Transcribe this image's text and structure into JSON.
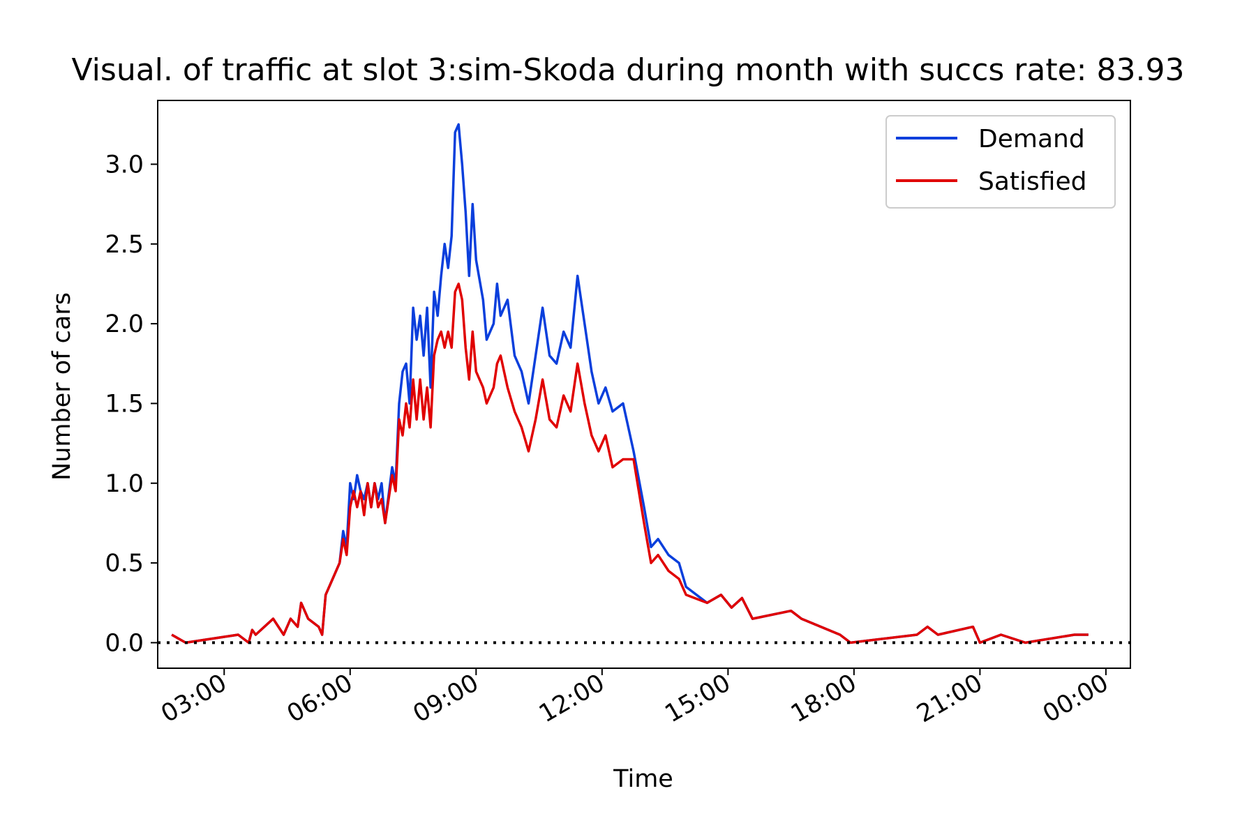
{
  "chart_data": {
    "type": "line",
    "title": "Visual. of traffic at slot 3:sim-Skoda during month with succs rate: 83.93",
    "xlabel": "Time",
    "ylabel": "Number of cars",
    "xlim": [
      "01:25",
      "00:35"
    ],
    "ylim": [
      -0.16,
      3.4
    ],
    "xticks": [
      "03:00",
      "06:00",
      "09:00",
      "12:00",
      "15:00",
      "18:00",
      "21:00",
      "00:00"
    ],
    "yticks": [
      "0.0",
      "0.5",
      "1.0",
      "1.5",
      "2.0",
      "2.5",
      "3.0"
    ],
    "grid": false,
    "legend_position": "top-right",
    "reference_line": {
      "y": 0.0,
      "style": "dotted",
      "color": "#000000"
    },
    "series": [
      {
        "name": "Demand",
        "color": "#0a3fdc",
        "points": [
          [
            "01:45",
            0.05
          ],
          [
            "02:05",
            0.0
          ],
          [
            "03:20",
            0.05
          ],
          [
            "03:35",
            0.0
          ],
          [
            "03:40",
            0.08
          ],
          [
            "03:45",
            0.05
          ],
          [
            "04:10",
            0.15
          ],
          [
            "04:25",
            0.05
          ],
          [
            "04:35",
            0.15
          ],
          [
            "04:45",
            0.1
          ],
          [
            "04:50",
            0.25
          ],
          [
            "05:00",
            0.15
          ],
          [
            "05:15",
            0.1
          ],
          [
            "05:20",
            0.05
          ],
          [
            "05:25",
            0.3
          ],
          [
            "05:35",
            0.4
          ],
          [
            "05:45",
            0.5
          ],
          [
            "05:50",
            0.7
          ],
          [
            "05:55",
            0.6
          ],
          [
            "06:00",
            1.0
          ],
          [
            "06:05",
            0.9
          ],
          [
            "06:10",
            1.05
          ],
          [
            "06:15",
            0.95
          ],
          [
            "06:20",
            0.9
          ],
          [
            "06:25",
            1.0
          ],
          [
            "06:30",
            0.85
          ],
          [
            "06:35",
            1.0
          ],
          [
            "06:40",
            0.9
          ],
          [
            "06:45",
            1.0
          ],
          [
            "06:50",
            0.75
          ],
          [
            "07:00",
            1.1
          ],
          [
            "07:05",
            1.0
          ],
          [
            "07:10",
            1.5
          ],
          [
            "07:15",
            1.7
          ],
          [
            "07:20",
            1.75
          ],
          [
            "07:25",
            1.5
          ],
          [
            "07:30",
            2.1
          ],
          [
            "07:35",
            1.9
          ],
          [
            "07:40",
            2.05
          ],
          [
            "07:45",
            1.8
          ],
          [
            "07:50",
            2.1
          ],
          [
            "07:55",
            1.6
          ],
          [
            "08:00",
            2.2
          ],
          [
            "08:05",
            2.05
          ],
          [
            "08:10",
            2.3
          ],
          [
            "08:15",
            2.5
          ],
          [
            "08:20",
            2.35
          ],
          [
            "08:25",
            2.55
          ],
          [
            "08:30",
            3.2
          ],
          [
            "08:35",
            3.25
          ],
          [
            "08:40",
            3.0
          ],
          [
            "08:45",
            2.7
          ],
          [
            "08:50",
            2.3
          ],
          [
            "08:55",
            2.75
          ],
          [
            "09:00",
            2.4
          ],
          [
            "09:10",
            2.15
          ],
          [
            "09:15",
            1.9
          ],
          [
            "09:25",
            2.0
          ],
          [
            "09:30",
            2.25
          ],
          [
            "09:35",
            2.05
          ],
          [
            "09:45",
            2.15
          ],
          [
            "09:55",
            1.8
          ],
          [
            "10:05",
            1.7
          ],
          [
            "10:15",
            1.5
          ],
          [
            "10:25",
            1.8
          ],
          [
            "10:35",
            2.1
          ],
          [
            "10:45",
            1.8
          ],
          [
            "10:55",
            1.75
          ],
          [
            "11:05",
            1.95
          ],
          [
            "11:15",
            1.85
          ],
          [
            "11:25",
            2.3
          ],
          [
            "11:35",
            2.0
          ],
          [
            "11:45",
            1.7
          ],
          [
            "11:55",
            1.5
          ],
          [
            "12:05",
            1.6
          ],
          [
            "12:15",
            1.45
          ],
          [
            "12:30",
            1.5
          ],
          [
            "12:45",
            1.2
          ],
          [
            "13:00",
            0.85
          ],
          [
            "13:10",
            0.6
          ],
          [
            "13:20",
            0.65
          ],
          [
            "13:35",
            0.55
          ],
          [
            "13:50",
            0.5
          ],
          [
            "14:00",
            0.35
          ],
          [
            "14:30",
            0.25
          ],
          [
            "14:50",
            0.3
          ],
          [
            "15:05",
            0.22
          ],
          [
            "15:20",
            0.28
          ],
          [
            "15:35",
            0.15
          ],
          [
            "16:30",
            0.2
          ],
          [
            "16:45",
            0.15
          ],
          [
            "17:40",
            0.05
          ],
          [
            "17:55",
            0.0
          ],
          [
            "19:30",
            0.05
          ],
          [
            "19:45",
            0.1
          ],
          [
            "20:00",
            0.05
          ],
          [
            "20:50",
            0.1
          ],
          [
            "21:00",
            0.0
          ],
          [
            "21:30",
            0.05
          ],
          [
            "22:05",
            0.0
          ],
          [
            "23:15",
            0.05
          ],
          [
            "23:35",
            0.05
          ]
        ]
      },
      {
        "name": "Satisfied",
        "color": "#e00000",
        "points": [
          [
            "01:45",
            0.05
          ],
          [
            "02:05",
            0.0
          ],
          [
            "03:20",
            0.05
          ],
          [
            "03:35",
            0.0
          ],
          [
            "03:40",
            0.08
          ],
          [
            "03:45",
            0.05
          ],
          [
            "04:10",
            0.15
          ],
          [
            "04:25",
            0.05
          ],
          [
            "04:35",
            0.15
          ],
          [
            "04:45",
            0.1
          ],
          [
            "04:50",
            0.25
          ],
          [
            "05:00",
            0.15
          ],
          [
            "05:15",
            0.1
          ],
          [
            "05:20",
            0.05
          ],
          [
            "05:25",
            0.3
          ],
          [
            "05:35",
            0.4
          ],
          [
            "05:45",
            0.5
          ],
          [
            "05:50",
            0.65
          ],
          [
            "05:55",
            0.55
          ],
          [
            "06:00",
            0.85
          ],
          [
            "06:05",
            0.95
          ],
          [
            "06:10",
            0.85
          ],
          [
            "06:15",
            0.95
          ],
          [
            "06:20",
            0.8
          ],
          [
            "06:25",
            1.0
          ],
          [
            "06:30",
            0.85
          ],
          [
            "06:35",
            1.0
          ],
          [
            "06:40",
            0.85
          ],
          [
            "06:45",
            0.9
          ],
          [
            "06:50",
            0.75
          ],
          [
            "07:00",
            1.05
          ],
          [
            "07:05",
            0.95
          ],
          [
            "07:10",
            1.4
          ],
          [
            "07:15",
            1.3
          ],
          [
            "07:20",
            1.5
          ],
          [
            "07:25",
            1.35
          ],
          [
            "07:30",
            1.65
          ],
          [
            "07:35",
            1.4
          ],
          [
            "07:40",
            1.65
          ],
          [
            "07:45",
            1.4
          ],
          [
            "07:50",
            1.6
          ],
          [
            "07:55",
            1.35
          ],
          [
            "08:00",
            1.8
          ],
          [
            "08:05",
            1.9
          ],
          [
            "08:10",
            1.95
          ],
          [
            "08:15",
            1.85
          ],
          [
            "08:20",
            1.95
          ],
          [
            "08:25",
            1.85
          ],
          [
            "08:30",
            2.2
          ],
          [
            "08:35",
            2.25
          ],
          [
            "08:40",
            2.15
          ],
          [
            "08:45",
            1.85
          ],
          [
            "08:50",
            1.65
          ],
          [
            "08:55",
            1.95
          ],
          [
            "09:00",
            1.7
          ],
          [
            "09:10",
            1.6
          ],
          [
            "09:15",
            1.5
          ],
          [
            "09:25",
            1.6
          ],
          [
            "09:30",
            1.75
          ],
          [
            "09:35",
            1.8
          ],
          [
            "09:45",
            1.6
          ],
          [
            "09:55",
            1.45
          ],
          [
            "10:05",
            1.35
          ],
          [
            "10:15",
            1.2
          ],
          [
            "10:25",
            1.4
          ],
          [
            "10:35",
            1.65
          ],
          [
            "10:45",
            1.4
          ],
          [
            "10:55",
            1.35
          ],
          [
            "11:05",
            1.55
          ],
          [
            "11:15",
            1.45
          ],
          [
            "11:25",
            1.75
          ],
          [
            "11:35",
            1.5
          ],
          [
            "11:45",
            1.3
          ],
          [
            "11:55",
            1.2
          ],
          [
            "12:05",
            1.3
          ],
          [
            "12:15",
            1.1
          ],
          [
            "12:30",
            1.15
          ],
          [
            "12:45",
            1.15
          ],
          [
            "13:00",
            0.75
          ],
          [
            "13:10",
            0.5
          ],
          [
            "13:20",
            0.55
          ],
          [
            "13:35",
            0.45
          ],
          [
            "13:50",
            0.4
          ],
          [
            "14:00",
            0.3
          ],
          [
            "14:30",
            0.25
          ],
          [
            "14:50",
            0.3
          ],
          [
            "15:05",
            0.22
          ],
          [
            "15:20",
            0.28
          ],
          [
            "15:35",
            0.15
          ],
          [
            "16:30",
            0.2
          ],
          [
            "16:45",
            0.15
          ],
          [
            "17:40",
            0.05
          ],
          [
            "17:55",
            0.0
          ],
          [
            "19:30",
            0.05
          ],
          [
            "19:45",
            0.1
          ],
          [
            "20:00",
            0.05
          ],
          [
            "20:50",
            0.1
          ],
          [
            "21:00",
            0.0
          ],
          [
            "21:30",
            0.05
          ],
          [
            "22:05",
            0.0
          ],
          [
            "23:15",
            0.05
          ],
          [
            "23:35",
            0.05
          ]
        ]
      }
    ]
  }
}
